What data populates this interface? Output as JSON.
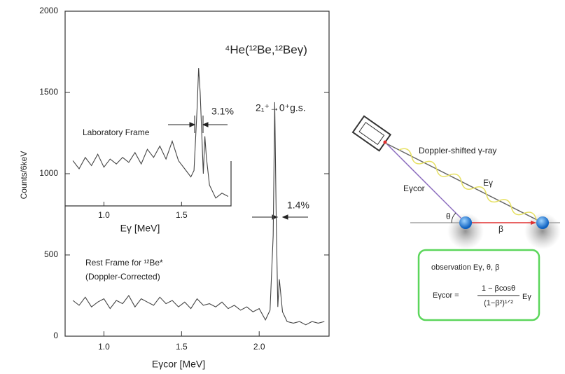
{
  "chart_data": {
    "type": "line",
    "title": "⁴He(¹²Be,¹²Beγ)",
    "x_label": "Eγcor [MeV]",
    "y_label": "Counts/6keV",
    "xlim": [
      0.75,
      2.45
    ],
    "ylim": [
      0,
      2000
    ],
    "xticks": [
      {
        "value": 1,
        "label": "1.0"
      },
      {
        "value": 1.5,
        "label": "1.5"
      },
      {
        "value": 2,
        "label": "2.0"
      }
    ],
    "yticks": [
      0,
      500,
      1000,
      1500,
      2000
    ],
    "series": [
      {
        "color": "#444444",
        "x": [
          0.8,
          0.84,
          0.88,
          0.92,
          0.96,
          1.0,
          1.04,
          1.08,
          1.12,
          1.16,
          1.2,
          1.24,
          1.28,
          1.32,
          1.36,
          1.4,
          1.44,
          1.48,
          1.52,
          1.56,
          1.6,
          1.64,
          1.68,
          1.72,
          1.76,
          1.8,
          1.84,
          1.88,
          1.92,
          1.96,
          2.0,
          2.04,
          2.07,
          2.09,
          2.1,
          2.11,
          2.12,
          2.13,
          2.15,
          2.18,
          2.22,
          2.26,
          2.3,
          2.34,
          2.38,
          2.42
        ],
        "values": [
          220,
          190,
          240,
          180,
          210,
          230,
          170,
          220,
          200,
          250,
          180,
          230,
          210,
          190,
          240,
          200,
          220,
          180,
          210,
          170,
          230,
          190,
          200,
          180,
          210,
          170,
          190,
          160,
          180,
          150,
          170,
          100,
          160,
          620,
          1440,
          700,
          180,
          350,
          150,
          90,
          80,
          90,
          70,
          90,
          80,
          90
        ]
      },
      {
        "color": "#444444",
        "x": [
          0.8,
          0.84,
          0.88,
          0.92,
          0.96,
          1.0,
          1.04,
          1.08,
          1.12,
          1.16,
          1.2,
          1.24,
          1.28,
          1.32,
          1.36,
          1.4,
          1.44,
          1.48,
          1.52,
          1.56,
          1.58,
          1.6,
          1.61,
          1.62,
          1.64,
          1.65,
          1.66,
          1.68,
          1.72,
          1.76,
          1.8
        ],
        "values": [
          1080,
          1030,
          1100,
          1050,
          1120,
          1040,
          1090,
          1060,
          1100,
          1070,
          1130,
          1060,
          1150,
          1100,
          1170,
          1090,
          1200,
          1080,
          1030,
          980,
          1020,
          1400,
          1650,
          1500,
          1000,
          1230,
          1100,
          930,
          850,
          880,
          860
        ]
      }
    ],
    "inset": {
      "x_label": "Eγ [MeV]",
      "xlim": [
        0.75,
        1.82
      ],
      "xticks": [
        {
          "value": 1,
          "label": "1.0"
        },
        {
          "value": 1.5,
          "label": "1.5"
        }
      ]
    },
    "annotations": [
      "2₁⁺→0⁺g.s.",
      "3.1%",
      "1.4%",
      "Laboratory Frame",
      "Rest Frame for ¹²Be*",
      "(Doppler-Corrected)"
    ]
  },
  "diagram": {
    "gamma_label": "Doppler-shifted γ-ray",
    "e_gamma": "Eγ",
    "e_cor": "Eγcor",
    "theta": "θ",
    "beta": "β",
    "observation": "observation  Eγ, θ, β",
    "formula_lhs": "Eγcor =",
    "formula_num": "1 − βcosθ",
    "formula_den": "(1−β²)¹ᐟ²",
    "formula_rhs": "Eγ"
  }
}
